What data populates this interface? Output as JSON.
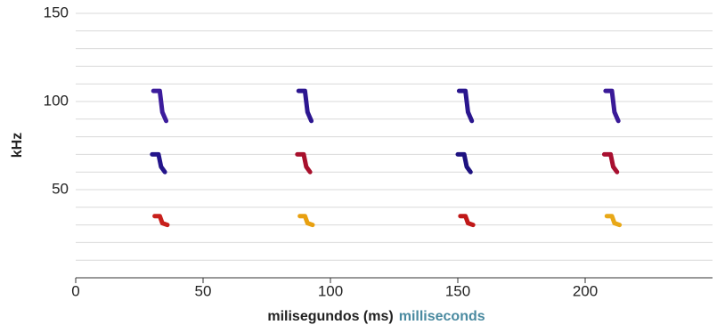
{
  "chart_data": {
    "type": "spectrogram",
    "ylabel": "kHz",
    "xlabel": "milisegundos (ms)",
    "xlabel_translation": "milliseconds",
    "xlim": [
      0,
      250
    ],
    "xticks": [
      0,
      50,
      100,
      150,
      200
    ],
    "ylim": [
      0,
      150
    ],
    "yticks": [
      50,
      100,
      150
    ],
    "minor_yticks": [
      10,
      20,
      30,
      40,
      60,
      70,
      80,
      90,
      110,
      120,
      130,
      140
    ],
    "grid": true,
    "traces": [
      {
        "color": "#3c1c9c",
        "x": [
          30.5,
          33,
          34,
          35.5
        ],
        "y": [
          106,
          106,
          94,
          89
        ]
      },
      {
        "color": "#23148a",
        "x": [
          30,
          32.5,
          33.5,
          35
        ],
        "y": [
          70,
          70,
          63,
          60
        ]
      },
      {
        "color": "#c8201c",
        "x": [
          31,
          33,
          34,
          36
        ],
        "y": [
          35,
          35,
          31,
          30
        ]
      },
      {
        "color": "#2c1690",
        "x": [
          87.5,
          90,
          91,
          92.5
        ],
        "y": [
          106,
          106,
          94,
          89
        ]
      },
      {
        "color": "#a8102c",
        "x": [
          87,
          89.5,
          90.5,
          92
        ],
        "y": [
          70,
          70,
          63,
          60
        ]
      },
      {
        "color": "#e8a010",
        "x": [
          88,
          90,
          91,
          93
        ],
        "y": [
          35,
          35,
          31,
          30
        ]
      },
      {
        "color": "#2a168e",
        "x": [
          150.5,
          153,
          154,
          155.5
        ],
        "y": [
          106,
          106,
          94,
          89
        ]
      },
      {
        "color": "#1e1280",
        "x": [
          150,
          152.5,
          153.5,
          155
        ],
        "y": [
          70,
          70,
          63,
          60
        ]
      },
      {
        "color": "#c01818",
        "x": [
          151,
          153,
          154,
          156
        ],
        "y": [
          35,
          35,
          31,
          30
        ]
      },
      {
        "color": "#3a1a98",
        "x": [
          208,
          210.5,
          211.5,
          213
        ],
        "y": [
          106,
          106,
          94,
          89
        ]
      },
      {
        "color": "#a81030",
        "x": [
          207.5,
          210,
          211,
          212.5
        ],
        "y": [
          70,
          70,
          63,
          60
        ]
      },
      {
        "color": "#e8a818",
        "x": [
          208.5,
          210.5,
          211.5,
          213.5
        ],
        "y": [
          35,
          35,
          31,
          30
        ]
      }
    ]
  }
}
